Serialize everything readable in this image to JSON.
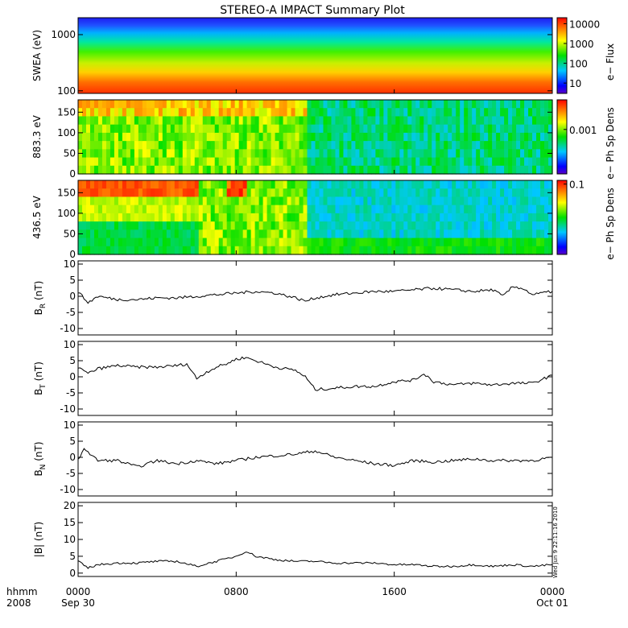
{
  "title": "STEREO-A IMPACT Summary Plot",
  "footer": {
    "time_label": "hhmm",
    "year_label": "2008",
    "timestamp": "Wed Jun  9 22:11:16 2010"
  },
  "x_axis": {
    "ticks": [
      {
        "time": "0000",
        "date": "Sep 30",
        "hour": 0
      },
      {
        "time": "0800",
        "date": "",
        "hour": 8
      },
      {
        "time": "1600",
        "date": "",
        "hour": 16
      },
      {
        "time": "0000",
        "date": "Oct 01",
        "hour": 24
      }
    ],
    "range_hours": [
      0,
      24
    ]
  },
  "spectrograms": [
    {
      "id": "swea",
      "ylabel": "SWEA (eV)",
      "yscale": "log",
      "yrange": [
        90,
        2000
      ],
      "yticks": [
        "100",
        "1000"
      ],
      "colorbar_label": "e− Flux",
      "colorbar_ticks": [
        "10000",
        "1000",
        "100",
        "10"
      ],
      "colorbar_scale": "log",
      "colorbar_range": [
        3,
        20000
      ]
    },
    {
      "id": "pad-883",
      "ylabel": "883.3 eV",
      "yrange": [
        0,
        180
      ],
      "yticks": [
        "0",
        "50",
        "100",
        "150"
      ],
      "colorbar_label": "e− Ph Sp Dens",
      "colorbar_ticks": [
        "0.001"
      ]
    },
    {
      "id": "pad-436",
      "ylabel": "436.5 eV",
      "yrange": [
        0,
        180
      ],
      "yticks": [
        "0",
        "50",
        "100",
        "150"
      ],
      "colorbar_label": "e− Ph Sp Dens",
      "colorbar_ticks": [
        "0.1"
      ]
    }
  ],
  "chart_data": [
    {
      "type": "line",
      "id": "br",
      "ylabel_main": "B",
      "ylabel_sub": "R",
      "ylabel_unit": " (nT)",
      "ylim": [
        -12,
        11
      ],
      "yticks": [
        "-10",
        "-5",
        "0",
        "5",
        "10"
      ],
      "x_hours": [
        0,
        0.5,
        1,
        1.5,
        2,
        3,
        4,
        5,
        6,
        7,
        8,
        9,
        10,
        11,
        11.5,
        12,
        13,
        14,
        15,
        16,
        17,
        18,
        19,
        20,
        21,
        21.5,
        22,
        22.5,
        23,
        24
      ],
      "values": [
        1.5,
        -2,
        0,
        -0.5,
        -1,
        -1,
        -0.5,
        -0.5,
        0,
        0.5,
        1,
        1.5,
        1,
        -0.5,
        -1.5,
        -0.5,
        0.5,
        1,
        1.5,
        1.5,
        2,
        2.5,
        2,
        1.5,
        2,
        0,
        3,
        2.5,
        0.5,
        1.5
      ]
    },
    {
      "type": "line",
      "id": "bt",
      "ylabel_main": "B",
      "ylabel_sub": "T",
      "ylabel_unit": " (nT)",
      "ylim": [
        -12,
        11
      ],
      "yticks": [
        "-10",
        "-5",
        "0",
        "5",
        "10"
      ],
      "x_hours": [
        0,
        0.5,
        1,
        2,
        3,
        4,
        5,
        5.5,
        6,
        6.5,
        7,
        7.5,
        8,
        8.5,
        9,
        10,
        11,
        11.5,
        12,
        13,
        14,
        15,
        16,
        17,
        17.5,
        18,
        19,
        20,
        21,
        22,
        23,
        24
      ],
      "values": [
        3,
        1,
        2.5,
        3.5,
        3,
        3,
        3.5,
        4,
        -0.5,
        1.5,
        3,
        4,
        5.5,
        6,
        5,
        3,
        2,
        0,
        -4,
        -3.5,
        -3,
        -3,
        -1.5,
        -1,
        1,
        -1.5,
        -2.5,
        -2,
        -2.5,
        -2,
        -2,
        0.5
      ]
    },
    {
      "type": "line",
      "id": "bn",
      "ylabel_main": "B",
      "ylabel_sub": "N",
      "ylabel_unit": " (nT)",
      "ylim": [
        -12,
        11
      ],
      "yticks": [
        "-10",
        "-5",
        "0",
        "5",
        "10"
      ],
      "x_hours": [
        0,
        0.3,
        0.6,
        1,
        2,
        3,
        4,
        5,
        6,
        7,
        8,
        9,
        10,
        11,
        12,
        13,
        14,
        15,
        16,
        17,
        18,
        19,
        20,
        21,
        22,
        23,
        24
      ],
      "values": [
        -1,
        3,
        1,
        -1,
        -1,
        -3,
        -1,
        -2,
        -1,
        -2,
        -1,
        0,
        0.5,
        1,
        2,
        0,
        -1,
        -2,
        -2.5,
        -1,
        -1.5,
        -1,
        -0.5,
        -1,
        -1,
        -1,
        0
      ]
    },
    {
      "type": "line",
      "id": "bmag",
      "ylabel_main": "|B|",
      "ylabel_sub": "",
      "ylabel_unit": " (nT)",
      "ylim": [
        -1,
        21
      ],
      "yticks": [
        "0",
        "5",
        "10",
        "15",
        "20"
      ],
      "x_hours": [
        0,
        0.5,
        1,
        2,
        3,
        4,
        5,
        6,
        7,
        8,
        8.5,
        9,
        10,
        11,
        12,
        13,
        14,
        15,
        16,
        17,
        18,
        19,
        20,
        21,
        22,
        23,
        24
      ],
      "values": [
        3.5,
        1.5,
        2.5,
        3,
        3,
        3.5,
        3.5,
        2,
        3.5,
        5,
        6.5,
        5,
        4,
        3.5,
        3.5,
        3,
        3,
        3,
        2.5,
        2.5,
        2,
        2,
        2.5,
        2,
        2.5,
        2,
        2.5
      ]
    }
  ]
}
